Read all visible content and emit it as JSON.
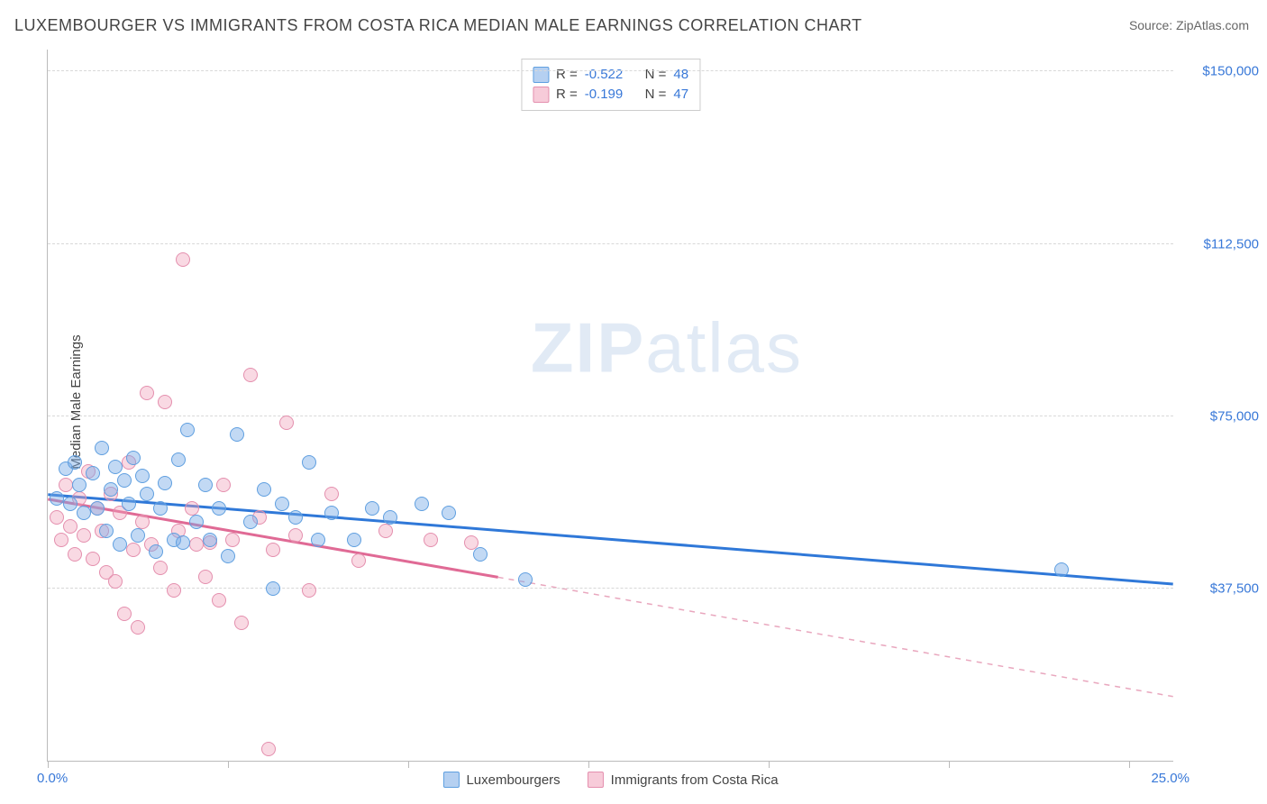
{
  "title": "LUXEMBOURGER VS IMMIGRANTS FROM COSTA RICA MEDIAN MALE EARNINGS CORRELATION CHART",
  "source": "Source: ZipAtlas.com",
  "watermark_a": "ZIP",
  "watermark_b": "atlas",
  "chart": {
    "type": "scatter",
    "ylabel": "Median Male Earnings",
    "xlim": [
      0,
      25
    ],
    "ylim": [
      0,
      155000
    ],
    "xmin_label": "0.0%",
    "xmax_label": "25.0%",
    "x_ticks": [
      0,
      4,
      8,
      12,
      16,
      20,
      24
    ],
    "y_grid": [
      {
        "v": 37500,
        "label": "$37,500"
      },
      {
        "v": 75000,
        "label": "$75,000"
      },
      {
        "v": 112500,
        "label": "$112,500"
      },
      {
        "v": 150000,
        "label": "$150,000"
      }
    ],
    "background_color": "#ffffff",
    "grid_color": "#d8d8d8",
    "axis_color": "#bbbbbb",
    "label_color": "#444444",
    "tick_label_color": "#3878d8",
    "title_fontsize": 18,
    "label_fontsize": 15,
    "marker_size": 16,
    "series": [
      {
        "key": "luxembourgers",
        "name": "Luxembourgers",
        "color_fill": "rgba(120,170,230,0.45)",
        "color_stroke": "#5f9fe0",
        "R": "-0.522",
        "N": "48",
        "trend": {
          "x1": 0,
          "y1": 58000,
          "x2": 25,
          "y2": 38500,
          "dash": false,
          "color": "#2f78d8",
          "width": 3
        },
        "points": [
          [
            0.2,
            57000
          ],
          [
            0.4,
            63500
          ],
          [
            0.5,
            56000
          ],
          [
            0.6,
            65000
          ],
          [
            0.7,
            60000
          ],
          [
            0.8,
            54000
          ],
          [
            1.0,
            62500
          ],
          [
            1.1,
            55000
          ],
          [
            1.2,
            68000
          ],
          [
            1.3,
            50000
          ],
          [
            1.4,
            59000
          ],
          [
            1.5,
            64000
          ],
          [
            1.6,
            47000
          ],
          [
            1.7,
            61000
          ],
          [
            1.8,
            56000
          ],
          [
            1.9,
            66000
          ],
          [
            2.0,
            49000
          ],
          [
            2.1,
            62000
          ],
          [
            2.2,
            58000
          ],
          [
            2.4,
            45500
          ],
          [
            2.5,
            55000
          ],
          [
            2.6,
            60500
          ],
          [
            2.8,
            48000
          ],
          [
            2.9,
            65500
          ],
          [
            3.0,
            47500
          ],
          [
            3.1,
            72000
          ],
          [
            3.3,
            52000
          ],
          [
            3.5,
            60000
          ],
          [
            3.6,
            48000
          ],
          [
            3.8,
            55000
          ],
          [
            4.0,
            44500
          ],
          [
            4.2,
            71000
          ],
          [
            4.5,
            52000
          ],
          [
            4.8,
            59000
          ],
          [
            5.0,
            37500
          ],
          [
            5.2,
            56000
          ],
          [
            5.5,
            53000
          ],
          [
            5.8,
            65000
          ],
          [
            6.0,
            48000
          ],
          [
            6.3,
            54000
          ],
          [
            6.8,
            48000
          ],
          [
            7.2,
            55000
          ],
          [
            7.6,
            53000
          ],
          [
            8.3,
            56000
          ],
          [
            8.9,
            54000
          ],
          [
            9.6,
            45000
          ],
          [
            10.6,
            39500
          ],
          [
            22.5,
            41500
          ]
        ]
      },
      {
        "key": "costa_rica",
        "name": "Immigrants from Costa Rica",
        "color_fill": "rgba(240,160,185,0.40)",
        "color_stroke": "#e48fae",
        "R": "-0.199",
        "N": "47",
        "trend_solid": {
          "x1": 0,
          "y1": 57000,
          "x2": 10,
          "y2": 40000,
          "color": "#e06a95",
          "width": 3
        },
        "trend_dash": {
          "x1": 10,
          "y1": 40000,
          "x2": 25,
          "y2": 14000,
          "color": "#e9a7be",
          "width": 1.5
        },
        "points": [
          [
            0.2,
            53000
          ],
          [
            0.3,
            48000
          ],
          [
            0.4,
            60000
          ],
          [
            0.5,
            51000
          ],
          [
            0.6,
            45000
          ],
          [
            0.7,
            57000
          ],
          [
            0.8,
            49000
          ],
          [
            0.9,
            63000
          ],
          [
            1.0,
            44000
          ],
          [
            1.1,
            55000
          ],
          [
            1.2,
            50000
          ],
          [
            1.3,
            41000
          ],
          [
            1.4,
            58000
          ],
          [
            1.5,
            39000
          ],
          [
            1.6,
            54000
          ],
          [
            1.7,
            32000
          ],
          [
            1.8,
            65000
          ],
          [
            1.9,
            46000
          ],
          [
            2.0,
            29000
          ],
          [
            2.1,
            52000
          ],
          [
            2.2,
            80000
          ],
          [
            2.3,
            47000
          ],
          [
            2.5,
            42000
          ],
          [
            2.6,
            78000
          ],
          [
            2.8,
            37000
          ],
          [
            2.9,
            50000
          ],
          [
            3.0,
            109000
          ],
          [
            3.2,
            55000
          ],
          [
            3.3,
            47000
          ],
          [
            3.5,
            40000
          ],
          [
            3.6,
            47500
          ],
          [
            3.8,
            35000
          ],
          [
            3.9,
            60000
          ],
          [
            4.1,
            48000
          ],
          [
            4.3,
            30000
          ],
          [
            4.5,
            84000
          ],
          [
            4.7,
            53000
          ],
          [
            4.9,
            2500
          ],
          [
            5.0,
            46000
          ],
          [
            5.3,
            73500
          ],
          [
            5.5,
            49000
          ],
          [
            5.8,
            37000
          ],
          [
            6.3,
            58000
          ],
          [
            6.9,
            43500
          ],
          [
            7.5,
            50000
          ],
          [
            8.5,
            48000
          ],
          [
            9.4,
            47500
          ]
        ]
      }
    ]
  },
  "corr_legend": {
    "R_label": "R =",
    "N_label": "N ="
  },
  "bottom_legend": {
    "items": [
      {
        "swatch": "blue",
        "label": "Luxembourgers"
      },
      {
        "swatch": "pink",
        "label": "Immigrants from Costa Rica"
      }
    ]
  }
}
